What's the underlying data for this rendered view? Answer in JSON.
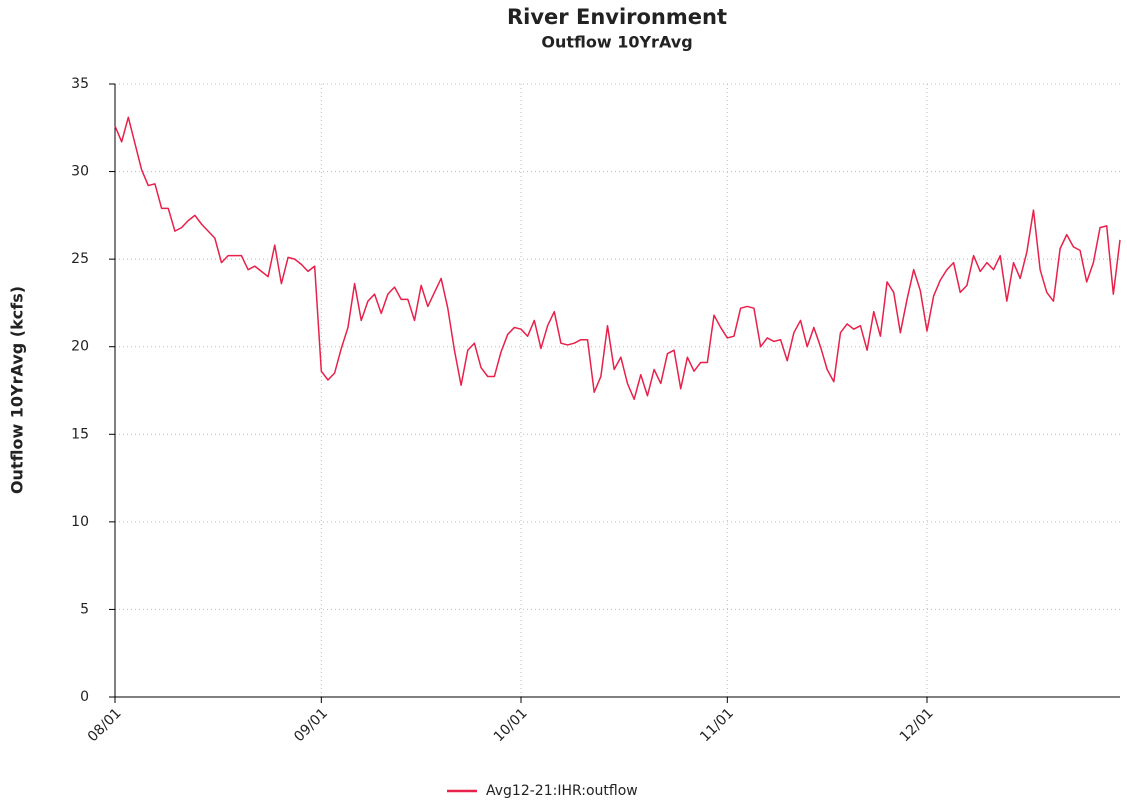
{
  "chart_data": {
    "type": "line",
    "title": "River Environment",
    "subtitle": "Outflow 10YrAvg",
    "y_label": "Outflow 10YrAvg (kcfs)",
    "x": [
      "08/01",
      "08/02",
      "08/03",
      "08/04",
      "08/05",
      "08/06",
      "08/07",
      "08/08",
      "08/09",
      "08/10",
      "08/11",
      "08/12",
      "08/13",
      "08/14",
      "08/15",
      "08/16",
      "08/17",
      "08/18",
      "08/19",
      "08/20",
      "08/21",
      "08/22",
      "08/23",
      "08/24",
      "08/25",
      "08/26",
      "08/27",
      "08/28",
      "08/29",
      "08/30",
      "08/31",
      "09/01",
      "09/02",
      "09/03",
      "09/04",
      "09/05",
      "09/06",
      "09/07",
      "09/08",
      "09/09",
      "09/10",
      "09/11",
      "09/12",
      "09/13",
      "09/14",
      "09/15",
      "09/16",
      "09/17",
      "09/18",
      "09/19",
      "09/20",
      "09/21",
      "09/22",
      "09/23",
      "09/24",
      "09/25",
      "09/26",
      "09/27",
      "09/28",
      "09/29",
      "09/30",
      "10/01",
      "10/02",
      "10/03",
      "10/04",
      "10/05",
      "10/06",
      "10/07",
      "10/08",
      "10/09",
      "10/10",
      "10/11",
      "10/12",
      "10/13",
      "10/14",
      "10/15",
      "10/16",
      "10/17",
      "10/18",
      "10/19",
      "10/20",
      "10/21",
      "10/22",
      "10/23",
      "10/24",
      "10/25",
      "10/26",
      "10/27",
      "10/28",
      "10/29",
      "10/30",
      "10/31",
      "11/01",
      "11/02",
      "11/03",
      "11/04",
      "11/05",
      "11/06",
      "11/07",
      "11/08",
      "11/09",
      "11/10",
      "11/11",
      "11/12",
      "11/13",
      "11/14",
      "11/15",
      "11/16",
      "11/17",
      "11/18",
      "11/19",
      "11/20",
      "11/21",
      "11/22",
      "11/23",
      "11/24",
      "11/25",
      "11/26",
      "11/27",
      "11/28",
      "11/29",
      "11/30",
      "12/01",
      "12/02",
      "12/03",
      "12/04",
      "12/05",
      "12/06",
      "12/07",
      "12/08",
      "12/09",
      "12/10",
      "12/11",
      "12/12",
      "12/13",
      "12/14",
      "12/15",
      "12/16",
      "12/17",
      "12/18",
      "12/19",
      "12/20",
      "12/21",
      "12/22",
      "12/23",
      "12/24",
      "12/25",
      "12/26",
      "12/27",
      "12/28",
      "12/29",
      "12/30"
    ],
    "series": [
      {
        "name": "Avg12-21:IHR:outflow",
        "color": "#e8204a",
        "values": [
          32.6,
          31.7,
          33.1,
          31.6,
          30.1,
          29.2,
          29.3,
          27.9,
          27.9,
          26.6,
          26.8,
          27.2,
          27.5,
          27.0,
          26.6,
          26.2,
          24.8,
          25.2,
          25.2,
          25.2,
          24.4,
          24.6,
          24.3,
          24.0,
          25.8,
          23.6,
          25.1,
          25.0,
          24.7,
          24.3,
          24.6,
          18.6,
          18.1,
          18.5,
          19.9,
          21.1,
          23.6,
          21.5,
          22.6,
          23.0,
          21.9,
          23.0,
          23.4,
          22.7,
          22.7,
          21.5,
          23.5,
          22.3,
          23.1,
          23.9,
          22.2,
          19.8,
          17.8,
          19.8,
          20.2,
          18.8,
          18.3,
          18.3,
          19.7,
          20.7,
          21.1,
          21.0,
          20.6,
          21.5,
          19.9,
          21.2,
          22.0,
          20.2,
          20.1,
          20.2,
          20.4,
          20.4,
          17.4,
          18.3,
          21.2,
          18.7,
          19.4,
          17.9,
          17.0,
          18.4,
          17.2,
          18.7,
          17.9,
          19.6,
          19.8,
          17.6,
          19.4,
          18.6,
          19.1,
          19.1,
          21.8,
          21.1,
          20.5,
          20.6,
          22.2,
          22.3,
          22.2,
          20.0,
          20.5,
          20.3,
          20.4,
          19.2,
          20.8,
          21.5,
          20.0,
          21.1,
          20.0,
          18.7,
          18.0,
          20.8,
          21.3,
          21.0,
          21.2,
          19.8,
          22.0,
          20.6,
          23.7,
          23.1,
          20.8,
          22.7,
          24.4,
          23.2,
          20.9,
          22.9,
          23.8,
          24.4,
          24.8,
          23.1,
          23.5,
          25.2,
          24.3,
          24.8,
          24.4,
          25.2,
          22.6,
          24.8,
          23.9,
          25.4,
          27.8,
          24.4,
          23.1,
          22.6,
          25.6,
          26.4,
          25.7,
          25.5,
          23.7,
          24.8,
          26.8,
          26.9,
          23.0,
          26.1
        ]
      }
    ],
    "xlim": [
      "08/01",
      "12/30"
    ],
    "xticks": [
      "08/01",
      "09/01",
      "10/01",
      "11/01",
      "12/01"
    ],
    "ylim": [
      0,
      35
    ],
    "yticks": [
      0,
      5,
      10,
      15,
      20,
      25,
      30,
      35
    ],
    "grid": true,
    "legend": "bottom"
  }
}
